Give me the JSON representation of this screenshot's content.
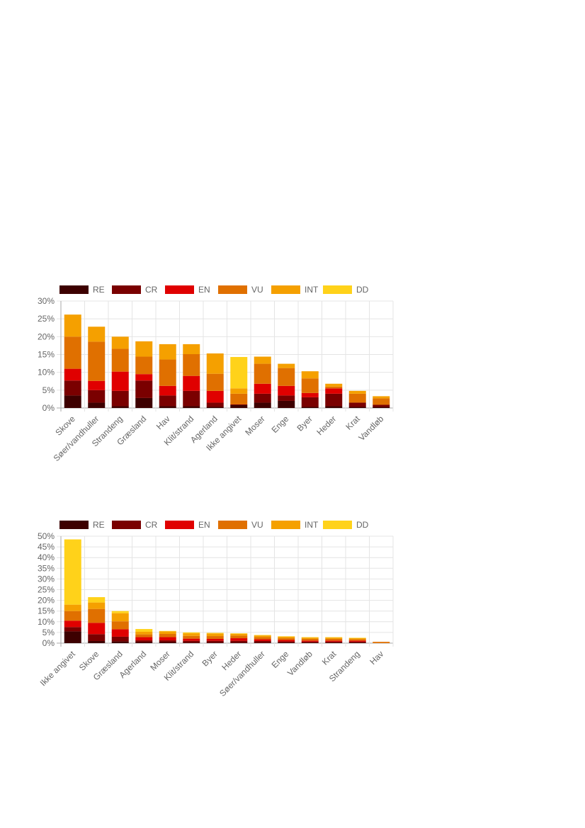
{
  "colors": {
    "RE": "#3d0000",
    "CR": "#7a0000",
    "EN": "#e00000",
    "VU": "#e07000",
    "INT": "#f5a000",
    "DD": "#ffd21a"
  },
  "chart_data": [
    {
      "type": "bar",
      "stacked": true,
      "legend_position": "top-left",
      "grid": true,
      "ylim": [
        0,
        30
      ],
      "yticks": [
        "0%",
        "5%",
        "10%",
        "15%",
        "20%",
        "25%",
        "30%"
      ],
      "categories": [
        "Skove",
        "Søer/vandhuller",
        "Strandeng",
        "Græsland",
        "Hav",
        "Klit/strand",
        "Agerland",
        "Ikke angivet",
        "Moser",
        "Enge",
        "Byer",
        "Heder",
        "Krat",
        "Vandløb"
      ],
      "series": [
        {
          "name": "RE",
          "values": [
            3.5,
            1.5,
            0.5,
            2.8,
            0.5,
            0.5,
            0.3,
            0.8,
            1.5,
            2.0,
            0.3,
            0.5,
            0.3,
            0.3
          ]
        },
        {
          "name": "CR",
          "values": [
            4.2,
            3.5,
            4.3,
            4.9,
            3.0,
            4.3,
            1.2,
            0.2,
            2.5,
            1.5,
            2.7,
            3.5,
            1.2,
            0.6
          ]
        },
        {
          "name": "EN",
          "values": [
            3.3,
            2.6,
            5.4,
            1.8,
            2.7,
            4.2,
            3.3,
            0.0,
            2.8,
            2.7,
            1.2,
            1.5,
            0.0,
            0.0
          ]
        },
        {
          "name": "VU",
          "values": [
            9.0,
            11.0,
            6.4,
            4.9,
            7.4,
            6.1,
            4.8,
            3.0,
            5.6,
            5.0,
            4.1,
            0.5,
            2.5,
            1.8
          ]
        },
        {
          "name": "INT",
          "values": [
            6.2,
            4.2,
            3.4,
            4.3,
            4.3,
            2.8,
            5.7,
            1.5,
            2.0,
            1.2,
            2.0,
            0.8,
            0.8,
            0.6
          ]
        },
        {
          "name": "DD",
          "values": [
            0.0,
            0.0,
            0.0,
            0.0,
            0.0,
            0.0,
            0.0,
            8.8,
            0.0,
            0.0,
            0.0,
            0.0,
            0.0,
            0.0
          ]
        }
      ]
    },
    {
      "type": "bar",
      "stacked": true,
      "legend_position": "top-left",
      "grid": true,
      "ylim": [
        0,
        50
      ],
      "yticks": [
        "0%",
        "5%",
        "10%",
        "15%",
        "20%",
        "25%",
        "30%",
        "35%",
        "40%",
        "45%",
        "50%"
      ],
      "categories": [
        "Ikke angivet",
        "Skove",
        "Græsland",
        "Agerland",
        "Moser",
        "Klit/strand",
        "Byer",
        "Heder",
        "Søer/vandhuller",
        "Enge",
        "Vandløb",
        "Krat",
        "Strandeng",
        "Hav"
      ],
      "series": [
        {
          "name": "RE",
          "values": [
            5.5,
            1.0,
            0.8,
            0.5,
            0.5,
            0.3,
            0.3,
            0.3,
            0.3,
            0.3,
            0.2,
            0.2,
            0.2,
            0.0
          ]
        },
        {
          "name": "CR",
          "values": [
            2.0,
            3.2,
            2.2,
            0.8,
            0.8,
            0.8,
            0.8,
            0.8,
            0.7,
            0.5,
            0.5,
            0.5,
            0.5,
            0.0
          ]
        },
        {
          "name": "EN",
          "values": [
            3.0,
            5.3,
            3.5,
            1.5,
            1.5,
            1.0,
            0.9,
            1.2,
            0.8,
            0.7,
            0.5,
            0.5,
            0.5,
            0.0
          ]
        },
        {
          "name": "VU",
          "values": [
            4.5,
            6.5,
            3.7,
            1.3,
            1.5,
            1.3,
            1.3,
            1.2,
            1.0,
            0.8,
            0.8,
            0.8,
            0.6,
            0.6
          ]
        },
        {
          "name": "INT",
          "values": [
            3.0,
            3.0,
            3.8,
            1.2,
            1.2,
            1.2,
            1.2,
            0.9,
            0.8,
            0.7,
            0.6,
            0.6,
            0.5,
            0.0
          ]
        },
        {
          "name": "DD",
          "values": [
            30.5,
            2.5,
            1.0,
            1.3,
            0.2,
            0.4,
            0.3,
            0.2,
            0.2,
            0.2,
            0.2,
            0.2,
            0.2,
            0.0
          ]
        }
      ]
    }
  ]
}
